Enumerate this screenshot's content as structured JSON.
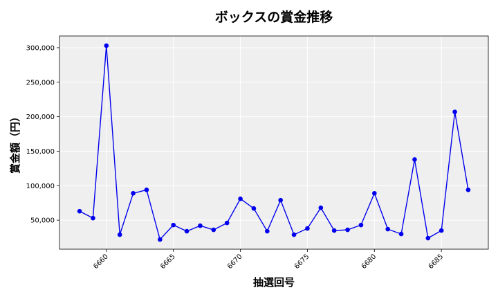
{
  "chart_data": {
    "type": "line",
    "title": "ボックスの賞金推移",
    "xlabel": "抽選回号",
    "ylabel": "賞金額（円）",
    "x_ticks": [
      6660,
      6665,
      6670,
      6675,
      6680,
      6685
    ],
    "y_ticks": [
      50000,
      100000,
      150000,
      200000,
      250000,
      300000
    ],
    "y_tick_labels": [
      "50,000",
      "100,000",
      "150,000",
      "200,000",
      "250,000",
      "300,000"
    ],
    "xlim": [
      6656.5,
      6688.5
    ],
    "ylim": [
      8000,
      317000
    ],
    "grid": true,
    "colors": {
      "line": "#0000ee",
      "marker": "#0000ee",
      "plot_bg": "#efefef",
      "grid": "#ffffff"
    },
    "series": [
      {
        "x": [
          6658,
          6659,
          6660,
          6661,
          6662,
          6663,
          6664,
          6665,
          6666,
          6667,
          6668,
          6669,
          6670,
          6671,
          6672,
          6673,
          6674,
          6675,
          6676,
          6677,
          6678,
          6679,
          6680,
          6681,
          6682,
          6683,
          6684,
          6685,
          6686,
          6687
        ],
        "values": [
          63000,
          53000,
          303000,
          29000,
          89000,
          94000,
          22000,
          43000,
          34000,
          42000,
          36000,
          46000,
          81000,
          67000,
          34000,
          79000,
          29000,
          38000,
          68000,
          35000,
          36000,
          43000,
          89000,
          37000,
          30000,
          138000,
          24000,
          35000,
          207000,
          94000
        ]
      }
    ]
  }
}
